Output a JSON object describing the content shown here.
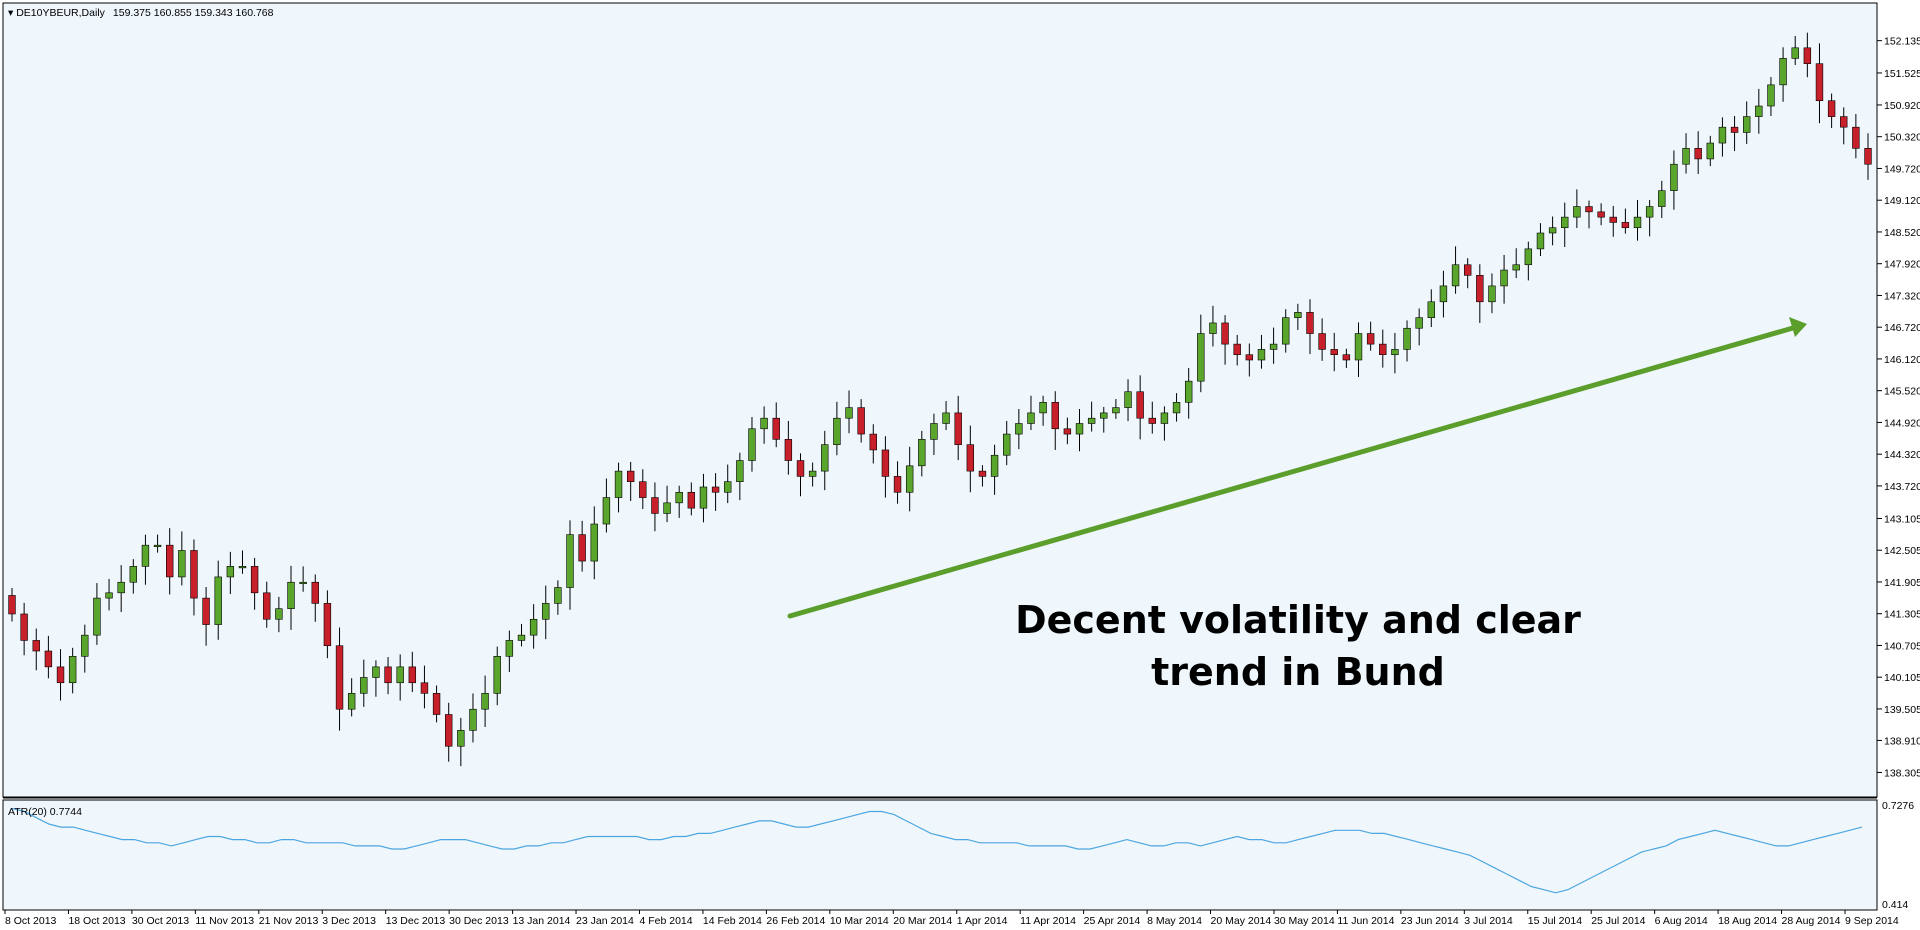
{
  "header": {
    "symbol": "DE10YBEUR,Daily",
    "ohlc": "159.375 160.855 159.343 160.768"
  },
  "indicator": {
    "label": "ATR(20) 0.7744",
    "max_label": "0.7276",
    "min_label": "0.414"
  },
  "annotation": {
    "line1": "Decent volatility and clear",
    "line2": "trend in Bund"
  },
  "colors": {
    "background": "#eff7fd",
    "bull": "#5aa52c",
    "bear": "#c8202a",
    "wick": "#000000",
    "atr_line": "#4da6e0",
    "arrow": "#5b9e2b"
  },
  "chart_data": [
    {
      "type": "candlestick",
      "title": "DE10YBEUR,Daily",
      "xlabel": "",
      "ylabel": "",
      "ylim": [
        138.2,
        152.45
      ],
      "x_tick_labels": [
        "8 Oct 2013",
        "18 Oct 2013",
        "30 Oct 2013",
        "11 Nov 2013",
        "21 Nov 2013",
        "3 Dec 2013",
        "13 Dec 2013",
        "30 Dec 2013",
        "13 Jan 2014",
        "23 Jan 2014",
        "4 Feb 2014",
        "14 Feb 2014",
        "26 Feb 2014",
        "10 Mar 2014",
        "20 Mar 2014",
        "1 Apr 2014",
        "11 Apr 2014",
        "25 Apr 2014",
        "8 May 2014",
        "20 May 2014",
        "30 May 2014",
        "11 Jun 2014",
        "23 Jun 2014",
        "3 Jul 2014",
        "15 Jul 2014",
        "25 Jul 2014",
        "6 Aug 2014",
        "18 Aug 2014",
        "28 Aug 2014",
        "9 Sep 2014"
      ],
      "y_tick_labels": [
        "152.135",
        "151.525",
        "150.920",
        "150.320",
        "149.720",
        "149.120",
        "148.520",
        "147.920",
        "147.320",
        "146.720",
        "146.120",
        "145.520",
        "144.920",
        "144.320",
        "143.720",
        "143.105",
        "142.505",
        "141.905",
        "141.305",
        "140.705",
        "140.105",
        "139.505",
        "138.910",
        "138.305"
      ],
      "y_tick_values": [
        152.135,
        151.525,
        150.92,
        150.32,
        149.72,
        149.12,
        148.52,
        147.92,
        147.32,
        146.72,
        146.12,
        145.52,
        144.92,
        144.32,
        143.72,
        143.105,
        142.505,
        141.905,
        141.305,
        140.705,
        140.105,
        139.505,
        138.91,
        138.305
      ],
      "grid": false,
      "close": [
        141.3,
        140.8,
        140.6,
        140.3,
        140.0,
        140.5,
        140.9,
        141.6,
        141.7,
        141.9,
        142.2,
        142.6,
        142.6,
        142.0,
        142.5,
        141.6,
        141.1,
        142.0,
        142.2,
        142.2,
        141.7,
        141.2,
        141.4,
        141.9,
        141.9,
        141.5,
        140.7,
        139.5,
        139.8,
        140.1,
        140.3,
        140.0,
        140.3,
        140.0,
        139.8,
        139.4,
        138.8,
        139.1,
        139.5,
        139.8,
        140.5,
        140.8,
        140.9,
        141.2,
        141.5,
        141.8,
        142.8,
        142.3,
        143.0,
        143.5,
        144.0,
        143.8,
        143.5,
        143.2,
        143.4,
        143.6,
        143.3,
        143.7,
        143.6,
        143.8,
        144.2,
        144.8,
        145.0,
        144.6,
        144.2,
        143.9,
        144.0,
        144.5,
        145.0,
        145.2,
        144.7,
        144.4,
        143.9,
        143.6,
        144.1,
        144.6,
        144.9,
        145.1,
        144.5,
        144.0,
        143.9,
        144.3,
        144.7,
        144.9,
        145.1,
        145.3,
        144.8,
        144.7,
        144.9,
        145.0,
        145.1,
        145.2,
        145.5,
        145.0,
        144.9,
        145.1,
        145.3,
        145.7,
        146.6,
        146.8,
        146.4,
        146.2,
        146.1,
        146.3,
        146.4,
        146.9,
        147.0,
        146.6,
        146.3,
        146.2,
        146.1,
        146.6,
        146.4,
        146.2,
        146.3,
        146.7,
        146.9,
        147.2,
        147.5,
        147.9,
        147.7,
        147.2,
        147.5,
        147.8,
        147.9,
        148.2,
        148.5,
        148.6,
        148.8,
        149.0,
        148.9,
        148.8,
        148.7,
        148.6,
        148.8,
        149.0,
        149.3,
        149.8,
        150.1,
        149.9,
        150.2,
        150.5,
        150.4,
        150.7,
        150.9,
        151.3,
        151.8,
        152.0,
        151.7,
        151.0,
        150.7,
        150.5,
        150.1,
        149.8
      ],
      "atr": {
        "label": "ATR(20) 0.7744",
        "range": [
          0.414,
          0.7276
        ],
        "values": [
          0.72,
          0.71,
          0.69,
          0.67,
          0.66,
          0.66,
          0.65,
          0.64,
          0.63,
          0.62,
          0.62,
          0.61,
          0.61,
          0.6,
          0.61,
          0.62,
          0.63,
          0.63,
          0.62,
          0.62,
          0.61,
          0.61,
          0.62,
          0.62,
          0.61,
          0.61,
          0.61,
          0.61,
          0.6,
          0.6,
          0.6,
          0.59,
          0.59,
          0.6,
          0.61,
          0.62,
          0.62,
          0.62,
          0.61,
          0.6,
          0.59,
          0.59,
          0.6,
          0.6,
          0.61,
          0.61,
          0.62,
          0.63,
          0.63,
          0.63,
          0.63,
          0.63,
          0.62,
          0.62,
          0.63,
          0.63,
          0.64,
          0.64,
          0.65,
          0.66,
          0.67,
          0.68,
          0.68,
          0.67,
          0.66,
          0.66,
          0.67,
          0.68,
          0.69,
          0.7,
          0.71,
          0.71,
          0.7,
          0.68,
          0.66,
          0.64,
          0.63,
          0.62,
          0.62,
          0.61,
          0.61,
          0.61,
          0.61,
          0.6,
          0.6,
          0.6,
          0.6,
          0.59,
          0.59,
          0.6,
          0.61,
          0.62,
          0.61,
          0.6,
          0.6,
          0.61,
          0.61,
          0.6,
          0.61,
          0.62,
          0.63,
          0.62,
          0.62,
          0.61,
          0.61,
          0.62,
          0.63,
          0.64,
          0.65,
          0.65,
          0.65,
          0.64,
          0.64,
          0.63,
          0.62,
          0.61,
          0.6,
          0.59,
          0.58,
          0.57,
          0.55,
          0.53,
          0.51,
          0.49,
          0.47,
          0.46,
          0.45,
          0.46,
          0.48,
          0.5,
          0.52,
          0.54,
          0.56,
          0.58,
          0.59,
          0.6,
          0.62,
          0.63,
          0.64,
          0.65,
          0.64,
          0.63,
          0.62,
          0.61,
          0.6,
          0.6,
          0.61,
          0.62,
          0.63,
          0.64,
          0.65,
          0.66
        ]
      }
    }
  ]
}
